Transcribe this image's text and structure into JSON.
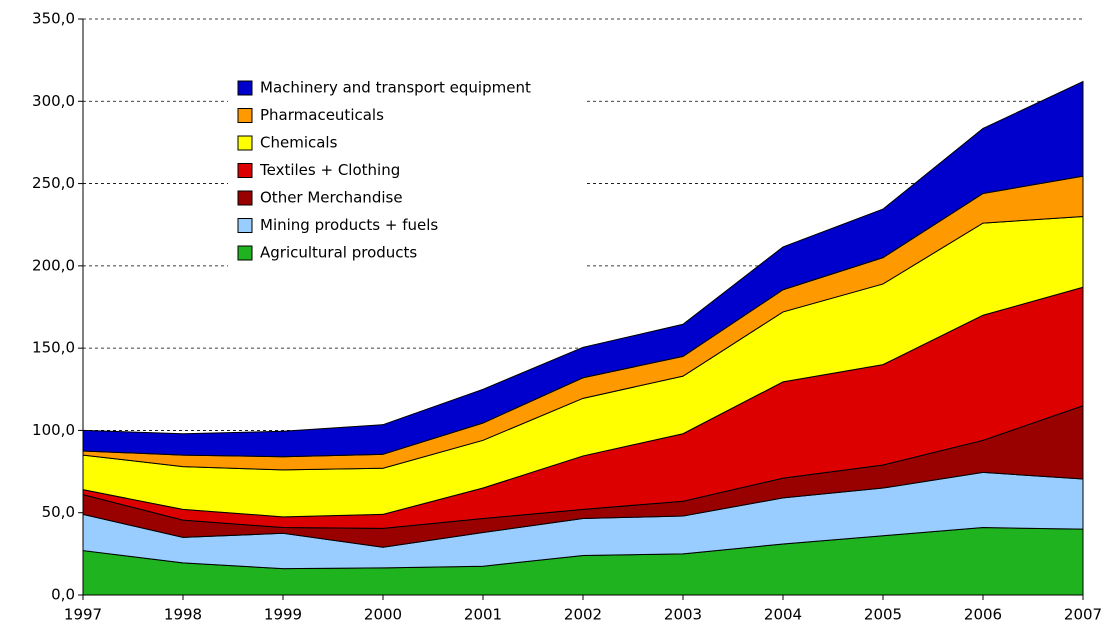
{
  "chart_data": {
    "type": "stacked-area",
    "categories": [
      "1997",
      "1998",
      "1999",
      "2000",
      "2001",
      "2002",
      "2003",
      "2004",
      "2005",
      "2006",
      "2007"
    ],
    "series": [
      {
        "name": "Agricultural products",
        "color": "#1fb31f",
        "values": [
          27,
          19.5,
          16,
          16.5,
          17.5,
          24,
          25,
          31,
          36,
          41,
          40
        ]
      },
      {
        "name": "Mining products + fuels",
        "color": "#99ccff",
        "values": [
          22,
          15.5,
          21.5,
          12.5,
          20.5,
          22.5,
          23,
          28,
          29,
          33.5,
          30.5
        ]
      },
      {
        "name": "Other Merchandise",
        "color": "#990000",
        "values": [
          12,
          10.5,
          3.5,
          11.5,
          8.5,
          5.5,
          9,
          12,
          14,
          19.5,
          44.5
        ]
      },
      {
        "name": "Textiles + Clothing",
        "color": "#dd0000",
        "values": [
          3,
          6.5,
          6.5,
          8.5,
          18.5,
          32.5,
          41,
          58.5,
          61,
          76,
          72
        ]
      },
      {
        "name": "Chemicals",
        "color": "#ffff00",
        "values": [
          21,
          26,
          28.5,
          28,
          29,
          35,
          35,
          42.5,
          49,
          56,
          43
        ]
      },
      {
        "name": "Pharmaceuticals",
        "color": "#ff9900",
        "values": [
          2.5,
          7,
          8,
          8.5,
          10.5,
          12.5,
          12,
          13.5,
          16,
          18,
          24.5
        ]
      },
      {
        "name": "Machinery and transport equipment",
        "color": "#0000cc",
        "values": [
          12.5,
          13,
          15.5,
          18,
          20.5,
          18.5,
          19.5,
          26,
          29.5,
          39.5,
          57.5
        ]
      }
    ],
    "ylim": [
      0,
      350
    ],
    "yticks": [
      {
        "value": 0,
        "label": "0,0"
      },
      {
        "value": 50,
        "label": "50,0"
      },
      {
        "value": 100,
        "label": "100,0"
      },
      {
        "value": 150,
        "label": "150,0"
      },
      {
        "value": 200,
        "label": "200,0"
      },
      {
        "value": 250,
        "label": "250,0"
      },
      {
        "value": 300,
        "label": "300,0"
      },
      {
        "value": 350,
        "label": "350,0"
      }
    ],
    "grid": true,
    "legend": "upper-left"
  }
}
